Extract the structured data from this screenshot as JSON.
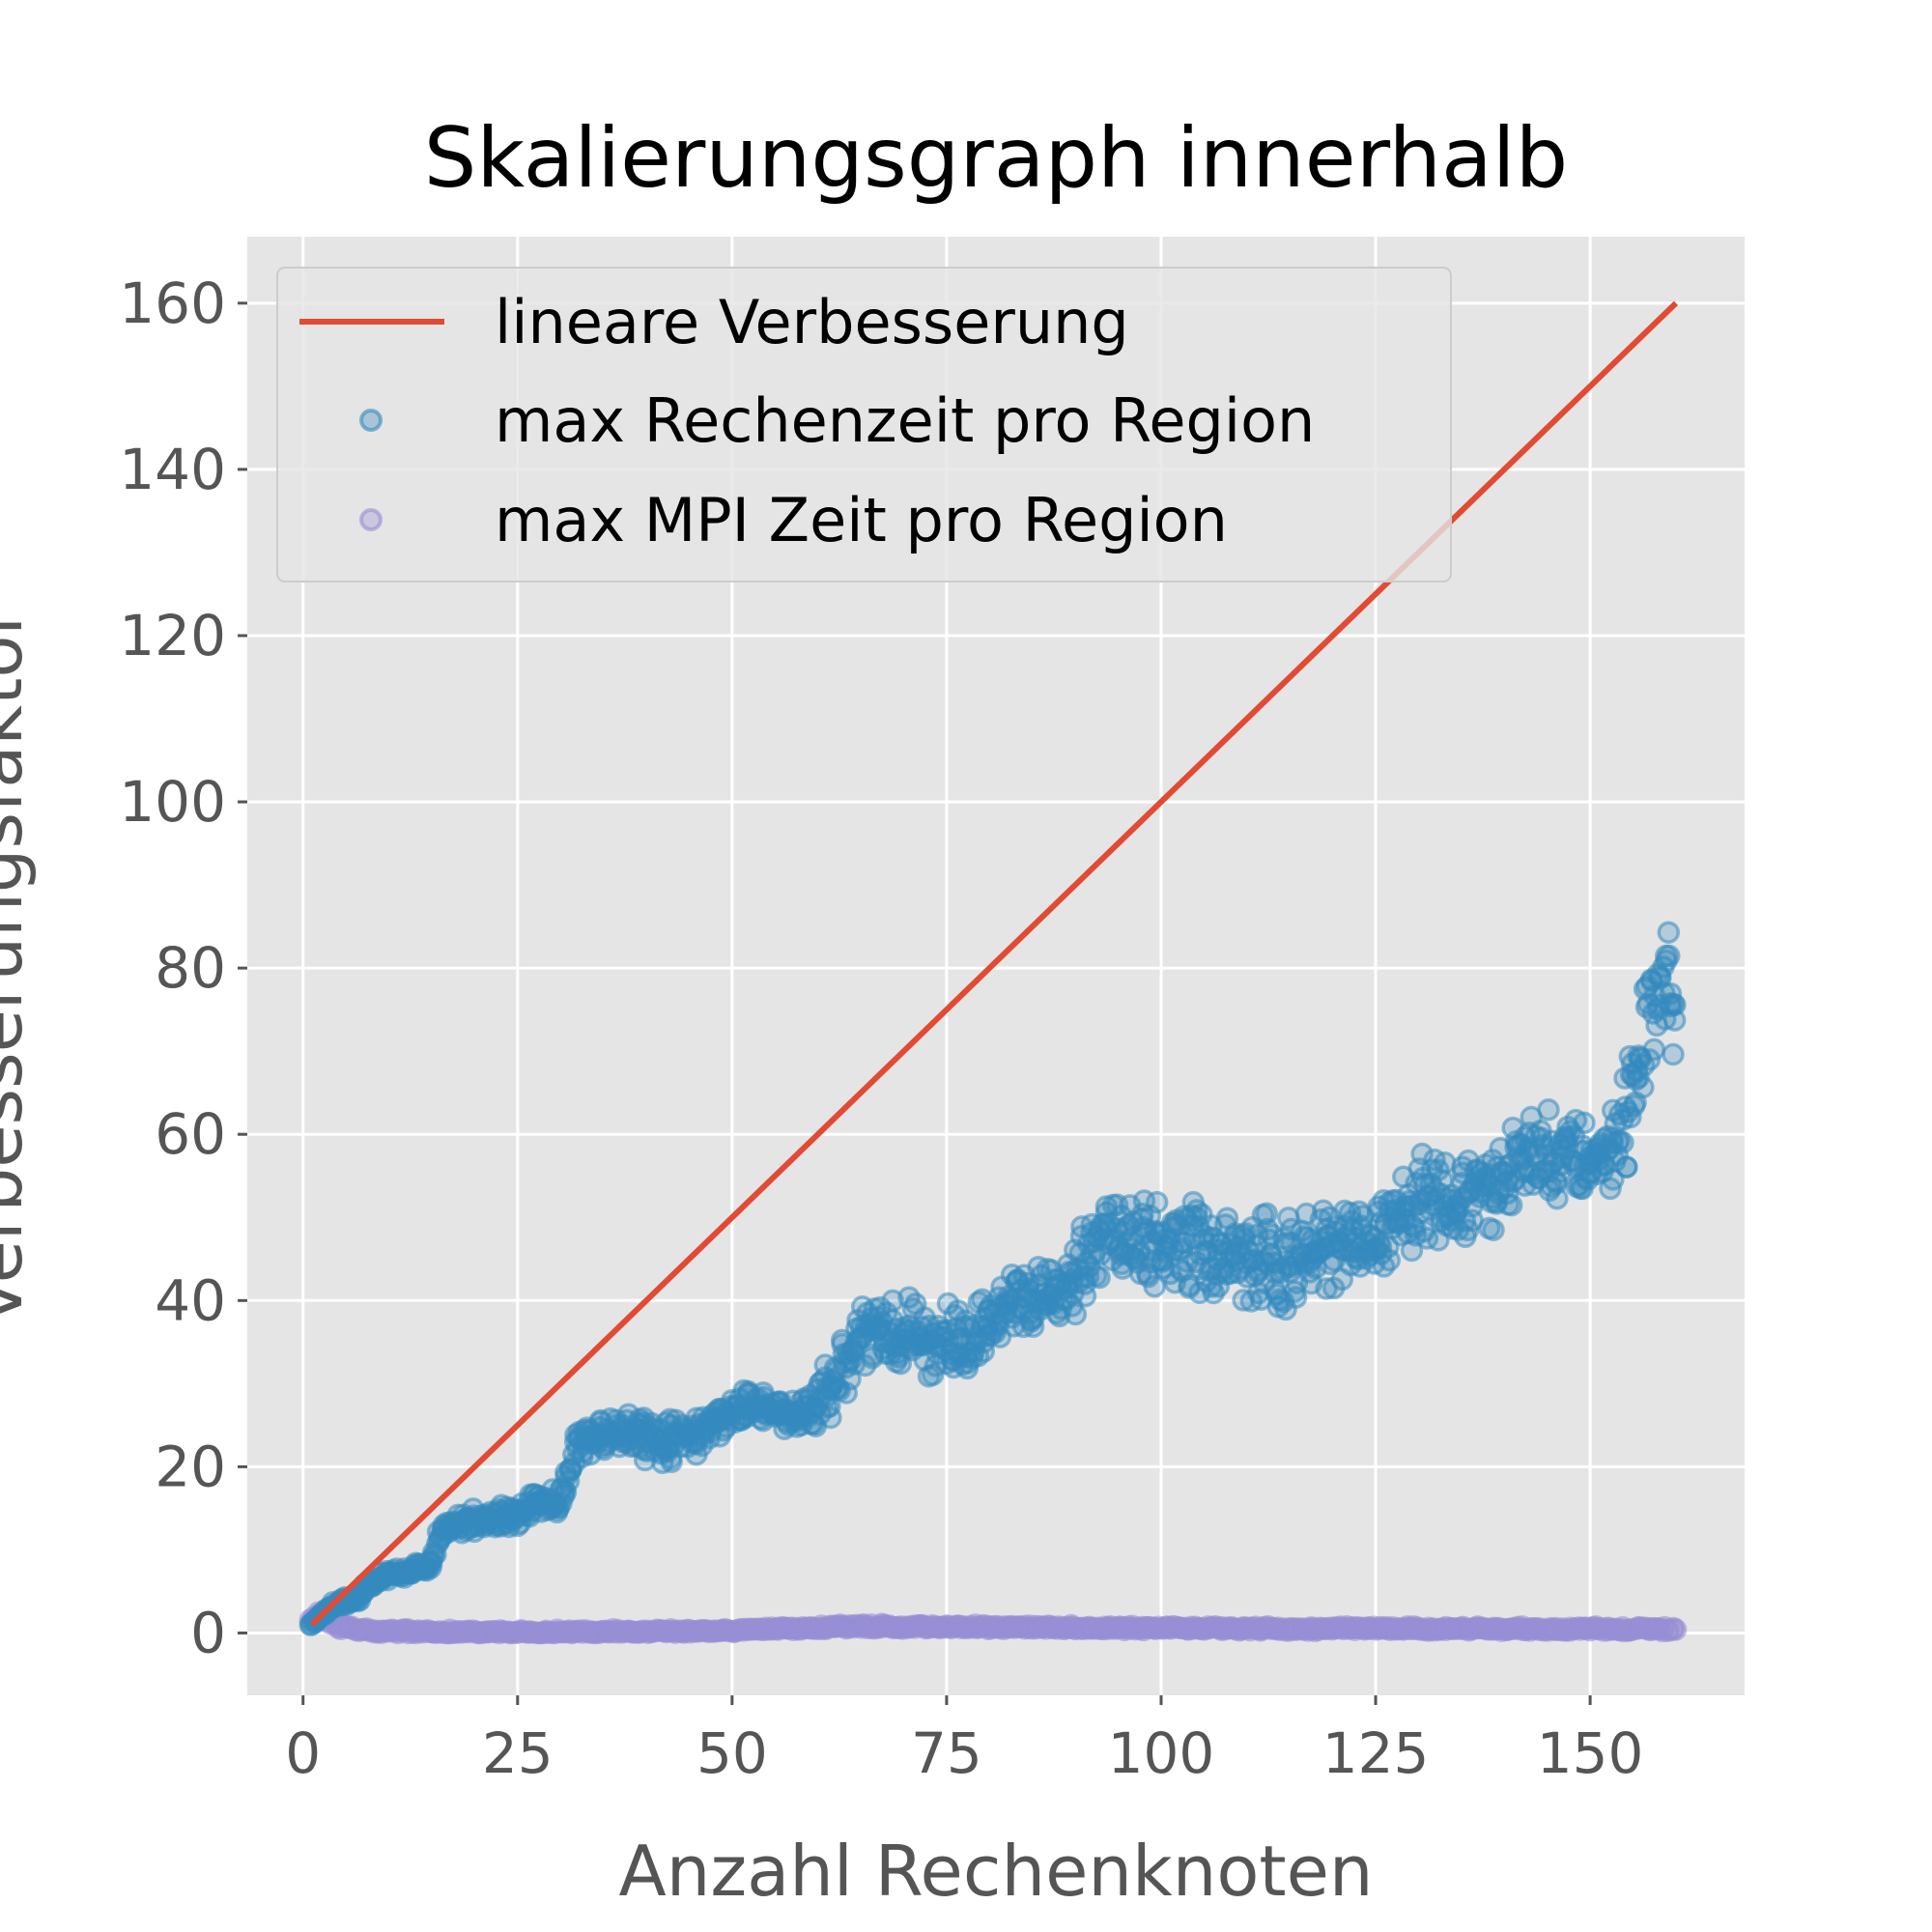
{
  "chart_data": {
    "type": "scatter",
    "title": "Skalierungsgraph innerhalb",
    "xlabel": "Anzahl Rechenknoten",
    "ylabel": "Verbesserungsfaktor",
    "xlim": [
      -6.5,
      168
    ],
    "ylim": [
      -7.5,
      168
    ],
    "xticks": [
      0,
      25,
      50,
      75,
      100,
      125,
      150
    ],
    "yticks": [
      0,
      20,
      40,
      60,
      80,
      100,
      120,
      140,
      160
    ],
    "grid": true,
    "legend_position": "top-left",
    "colors": {
      "plot_background": "#e5e5e5",
      "grid": "#ffffff",
      "linear": "#e24a33",
      "compute": "#348abd",
      "mpi": "#988ed5"
    },
    "series": [
      {
        "name": "lineare Verbesserung",
        "kind": "line",
        "x": [
          1,
          160
        ],
        "y": [
          1,
          160
        ]
      },
      {
        "name": "max Rechenzeit pro Region",
        "kind": "scatter",
        "trend_x": [
          1,
          2,
          3,
          4,
          6,
          8,
          10,
          13,
          15,
          16,
          18,
          20,
          22,
          25,
          27,
          30,
          32,
          35,
          38,
          40,
          42,
          44,
          46,
          48,
          50,
          52,
          55,
          58,
          60,
          62,
          64,
          66,
          68,
          70,
          72,
          74,
          76,
          78,
          80,
          82,
          84,
          86,
          88,
          90,
          92,
          94,
          96,
          98,
          100,
          102,
          104,
          106,
          108,
          110,
          112,
          114,
          116,
          118,
          120,
          122,
          124,
          126,
          128,
          130,
          132,
          134,
          136,
          138,
          140,
          142,
          144,
          146,
          148,
          150,
          152,
          153,
          154,
          155,
          156,
          157,
          158,
          159,
          160
        ],
        "trend_y": [
          1,
          2,
          3,
          3.5,
          4,
          6,
          7,
          7.5,
          8,
          12,
          13,
          13.5,
          14,
          14,
          16,
          16,
          22,
          24,
          24,
          24,
          23,
          24,
          24,
          25,
          27,
          27,
          27,
          26,
          28,
          30,
          34,
          36,
          36,
          36,
          35,
          35,
          35,
          35,
          38,
          39,
          40,
          40,
          41,
          42,
          47,
          48,
          48,
          48,
          46,
          47,
          47,
          46,
          45,
          45,
          46,
          44,
          46,
          46,
          46,
          47,
          47,
          47,
          50,
          52,
          53,
          52,
          53,
          53,
          55,
          57,
          58,
          57,
          58,
          57,
          58,
          60,
          62,
          65,
          70,
          74,
          78,
          80,
          72
        ],
        "spread": [
          0,
          0.4,
          0.5,
          0.5,
          0.6,
          0.8,
          1,
          1,
          1,
          1.5,
          1.6,
          1.6,
          1.6,
          1.6,
          1.6,
          1.6,
          2.8,
          3.2,
          3.2,
          3.4,
          3.4,
          3.4,
          3.4,
          3.2,
          2.5,
          2.5,
          2.5,
          2.5,
          3.5,
          4.5,
          5,
          5,
          5,
          5,
          5,
          5,
          5,
          5,
          4.5,
          4.5,
          4.5,
          4.5,
          4.5,
          6,
          6,
          6,
          6,
          6,
          6,
          6,
          6,
          6,
          6,
          6,
          6,
          6,
          6,
          6,
          6,
          6,
          6,
          6,
          6,
          6,
          6,
          6,
          6,
          6,
          6,
          6,
          6,
          6,
          6,
          6,
          6,
          7,
          8,
          9,
          9,
          9,
          8,
          8,
          8
        ],
        "points_per_x": 7
      },
      {
        "name": "max MPI Zeit pro Region",
        "kind": "scatter",
        "trend_x": [
          1,
          2,
          3,
          5,
          8,
          15,
          30,
          50,
          63,
          100,
          130,
          160
        ],
        "trend_y": [
          1.5,
          2.5,
          1.5,
          0.6,
          0.3,
          0.1,
          0.1,
          0.3,
          0.8,
          0.6,
          0.5,
          0.5
        ],
        "spread": [
          0.5,
          1.2,
          0.8,
          0.4,
          0.3,
          0.3,
          0.3,
          0.3,
          0.3,
          0.3,
          0.3,
          0.3
        ],
        "points_per_x": 3
      }
    ]
  }
}
